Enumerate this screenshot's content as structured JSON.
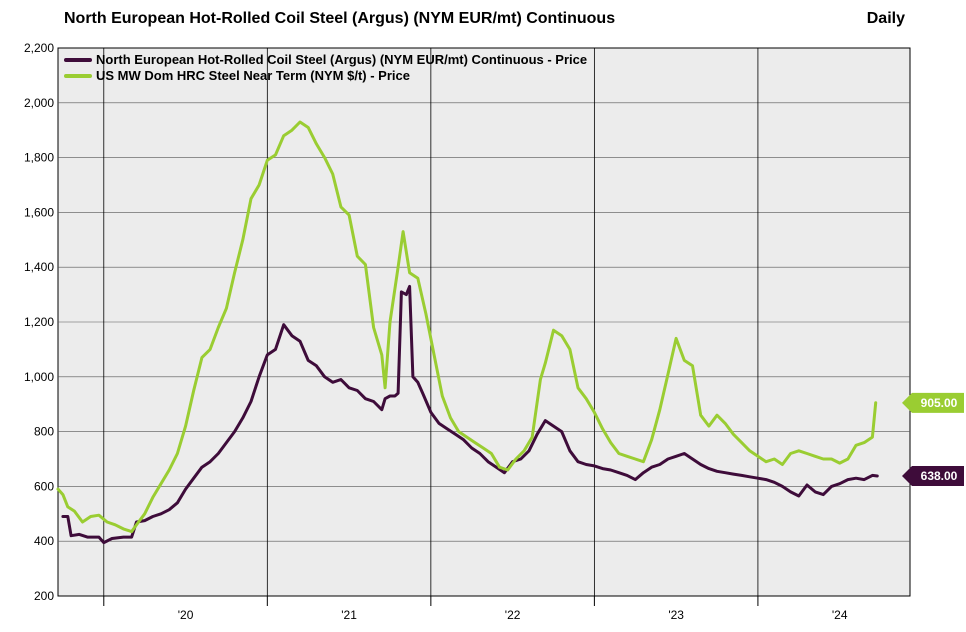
{
  "chart_data": {
    "type": "line",
    "title": "North European Hot-Rolled Coil Steel (Argus) (NYM EUR/mt) Continuous",
    "frequency_label": "Daily",
    "ylim": [
      200,
      2200
    ],
    "y_ticks": [
      "200",
      "400",
      "600",
      "800",
      "1,000",
      "1,200",
      "1,400",
      "1,600",
      "1,800",
      "2,000",
      "2,200"
    ],
    "x_range": [
      2019.72,
      2024.93
    ],
    "x_ticks": [
      {
        "year": 2020,
        "label": "'20"
      },
      {
        "year": 2021,
        "label": "'21"
      },
      {
        "year": 2022,
        "label": "'22"
      },
      {
        "year": 2023,
        "label": "'23"
      },
      {
        "year": 2024,
        "label": "'24"
      }
    ],
    "grid": true,
    "legend_position": "top-left",
    "series": [
      {
        "name": "North European Hot-Rolled Coil Steel (Argus) (NYM EUR/mt) Continuous - Price",
        "color": "#3e0c3a",
        "last_value_label": "638.00",
        "points": [
          [
            2019.75,
            490
          ],
          [
            2019.78,
            490
          ],
          [
            2019.8,
            420
          ],
          [
            2019.85,
            425
          ],
          [
            2019.9,
            415
          ],
          [
            2019.97,
            415
          ],
          [
            2020.0,
            395
          ],
          [
            2020.05,
            410
          ],
          [
            2020.12,
            415
          ],
          [
            2020.17,
            415
          ],
          [
            2020.2,
            470
          ],
          [
            2020.25,
            475
          ],
          [
            2020.3,
            490
          ],
          [
            2020.35,
            500
          ],
          [
            2020.4,
            515
          ],
          [
            2020.45,
            540
          ],
          [
            2020.5,
            590
          ],
          [
            2020.55,
            630
          ],
          [
            2020.6,
            670
          ],
          [
            2020.65,
            690
          ],
          [
            2020.7,
            720
          ],
          [
            2020.75,
            760
          ],
          [
            2020.8,
            800
          ],
          [
            2020.85,
            850
          ],
          [
            2020.9,
            910
          ],
          [
            2020.95,
            1000
          ],
          [
            2021.0,
            1080
          ],
          [
            2021.05,
            1100
          ],
          [
            2021.1,
            1190
          ],
          [
            2021.15,
            1150
          ],
          [
            2021.2,
            1130
          ],
          [
            2021.25,
            1060
          ],
          [
            2021.3,
            1040
          ],
          [
            2021.35,
            1000
          ],
          [
            2021.4,
            980
          ],
          [
            2021.45,
            990
          ],
          [
            2021.5,
            960
          ],
          [
            2021.55,
            950
          ],
          [
            2021.6,
            920
          ],
          [
            2021.65,
            910
          ],
          [
            2021.7,
            880
          ],
          [
            2021.72,
            920
          ],
          [
            2021.75,
            930
          ],
          [
            2021.78,
            930
          ],
          [
            2021.8,
            940
          ],
          [
            2021.82,
            1310
          ],
          [
            2021.85,
            1300
          ],
          [
            2021.87,
            1330
          ],
          [
            2021.89,
            1000
          ],
          [
            2021.92,
            980
          ],
          [
            2021.95,
            940
          ],
          [
            2022.0,
            870
          ],
          [
            2022.05,
            830
          ],
          [
            2022.1,
            810
          ],
          [
            2022.15,
            790
          ],
          [
            2022.2,
            770
          ],
          [
            2022.25,
            740
          ],
          [
            2022.3,
            720
          ],
          [
            2022.35,
            690
          ],
          [
            2022.4,
            670
          ],
          [
            2022.45,
            650
          ],
          [
            2022.5,
            690
          ],
          [
            2022.55,
            700
          ],
          [
            2022.6,
            730
          ],
          [
            2022.65,
            790
          ],
          [
            2022.7,
            840
          ],
          [
            2022.75,
            820
          ],
          [
            2022.8,
            800
          ],
          [
            2022.85,
            730
          ],
          [
            2022.9,
            690
          ],
          [
            2022.95,
            680
          ],
          [
            2023.0,
            675
          ],
          [
            2023.05,
            665
          ],
          [
            2023.1,
            660
          ],
          [
            2023.15,
            650
          ],
          [
            2023.2,
            640
          ],
          [
            2023.25,
            625
          ],
          [
            2023.3,
            650
          ],
          [
            2023.35,
            670
          ],
          [
            2023.4,
            680
          ],
          [
            2023.45,
            700
          ],
          [
            2023.5,
            710
          ],
          [
            2023.55,
            720
          ],
          [
            2023.6,
            700
          ],
          [
            2023.65,
            680
          ],
          [
            2023.7,
            665
          ],
          [
            2023.75,
            655
          ],
          [
            2023.8,
            650
          ],
          [
            2023.85,
            645
          ],
          [
            2023.9,
            640
          ],
          [
            2023.95,
            635
          ],
          [
            2024.0,
            630
          ],
          [
            2024.05,
            625
          ],
          [
            2024.1,
            615
          ],
          [
            2024.15,
            600
          ],
          [
            2024.2,
            580
          ],
          [
            2024.25,
            565
          ],
          [
            2024.3,
            605
          ],
          [
            2024.35,
            580
          ],
          [
            2024.4,
            570
          ],
          [
            2024.45,
            600
          ],
          [
            2024.5,
            610
          ],
          [
            2024.55,
            625
          ],
          [
            2024.6,
            630
          ],
          [
            2024.65,
            625
          ],
          [
            2024.7,
            640
          ],
          [
            2024.73,
            638
          ]
        ]
      },
      {
        "name": "US MW Dom HRC Steel Near Term (NYM $/t) - Price",
        "color": "#9acd32",
        "last_value_label": "905.00",
        "points": [
          [
            2019.72,
            590
          ],
          [
            2019.75,
            570
          ],
          [
            2019.78,
            525
          ],
          [
            2019.82,
            510
          ],
          [
            2019.87,
            470
          ],
          [
            2019.92,
            490
          ],
          [
            2019.97,
            495
          ],
          [
            2020.02,
            470
          ],
          [
            2020.07,
            460
          ],
          [
            2020.12,
            445
          ],
          [
            2020.17,
            435
          ],
          [
            2020.2,
            460
          ],
          [
            2020.25,
            500
          ],
          [
            2020.3,
            560
          ],
          [
            2020.35,
            610
          ],
          [
            2020.4,
            660
          ],
          [
            2020.45,
            720
          ],
          [
            2020.5,
            820
          ],
          [
            2020.55,
            950
          ],
          [
            2020.6,
            1070
          ],
          [
            2020.65,
            1100
          ],
          [
            2020.7,
            1180
          ],
          [
            2020.75,
            1250
          ],
          [
            2020.8,
            1380
          ],
          [
            2020.85,
            1500
          ],
          [
            2020.9,
            1650
          ],
          [
            2020.95,
            1700
          ],
          [
            2021.0,
            1790
          ],
          [
            2021.05,
            1810
          ],
          [
            2021.1,
            1880
          ],
          [
            2021.15,
            1900
          ],
          [
            2021.2,
            1930
          ],
          [
            2021.25,
            1910
          ],
          [
            2021.3,
            1850
          ],
          [
            2021.35,
            1800
          ],
          [
            2021.4,
            1740
          ],
          [
            2021.45,
            1620
          ],
          [
            2021.5,
            1590
          ],
          [
            2021.55,
            1440
          ],
          [
            2021.6,
            1410
          ],
          [
            2021.65,
            1180
          ],
          [
            2021.7,
            1080
          ],
          [
            2021.72,
            960
          ],
          [
            2021.75,
            1200
          ],
          [
            2021.8,
            1400
          ],
          [
            2021.83,
            1530
          ],
          [
            2021.87,
            1380
          ],
          [
            2021.92,
            1360
          ],
          [
            2021.97,
            1230
          ],
          [
            2022.02,
            1080
          ],
          [
            2022.07,
            930
          ],
          [
            2022.12,
            850
          ],
          [
            2022.17,
            800
          ],
          [
            2022.22,
            780
          ],
          [
            2022.27,
            760
          ],
          [
            2022.32,
            740
          ],
          [
            2022.37,
            720
          ],
          [
            2022.42,
            670
          ],
          [
            2022.47,
            660
          ],
          [
            2022.52,
            700
          ],
          [
            2022.57,
            730
          ],
          [
            2022.62,
            780
          ],
          [
            2022.67,
            990
          ],
          [
            2022.7,
            1050
          ],
          [
            2022.75,
            1170
          ],
          [
            2022.8,
            1150
          ],
          [
            2022.85,
            1100
          ],
          [
            2022.9,
            960
          ],
          [
            2022.95,
            920
          ],
          [
            2023.0,
            870
          ],
          [
            2023.05,
            810
          ],
          [
            2023.1,
            760
          ],
          [
            2023.15,
            720
          ],
          [
            2023.2,
            710
          ],
          [
            2023.25,
            700
          ],
          [
            2023.3,
            690
          ],
          [
            2023.35,
            770
          ],
          [
            2023.4,
            880
          ],
          [
            2023.45,
            1010
          ],
          [
            2023.5,
            1140
          ],
          [
            2023.55,
            1060
          ],
          [
            2023.6,
            1040
          ],
          [
            2023.65,
            860
          ],
          [
            2023.7,
            820
          ],
          [
            2023.75,
            860
          ],
          [
            2023.8,
            830
          ],
          [
            2023.85,
            790
          ],
          [
            2023.9,
            760
          ],
          [
            2023.95,
            730
          ],
          [
            2024.0,
            710
          ],
          [
            2024.05,
            690
          ],
          [
            2024.1,
            700
          ],
          [
            2024.15,
            680
          ],
          [
            2024.2,
            720
          ],
          [
            2024.25,
            730
          ],
          [
            2024.3,
            720
          ],
          [
            2024.35,
            710
          ],
          [
            2024.4,
            700
          ],
          [
            2024.45,
            700
          ],
          [
            2024.5,
            685
          ],
          [
            2024.55,
            700
          ],
          [
            2024.6,
            750
          ],
          [
            2024.65,
            760
          ],
          [
            2024.7,
            780
          ],
          [
            2024.72,
            905
          ]
        ]
      }
    ]
  }
}
